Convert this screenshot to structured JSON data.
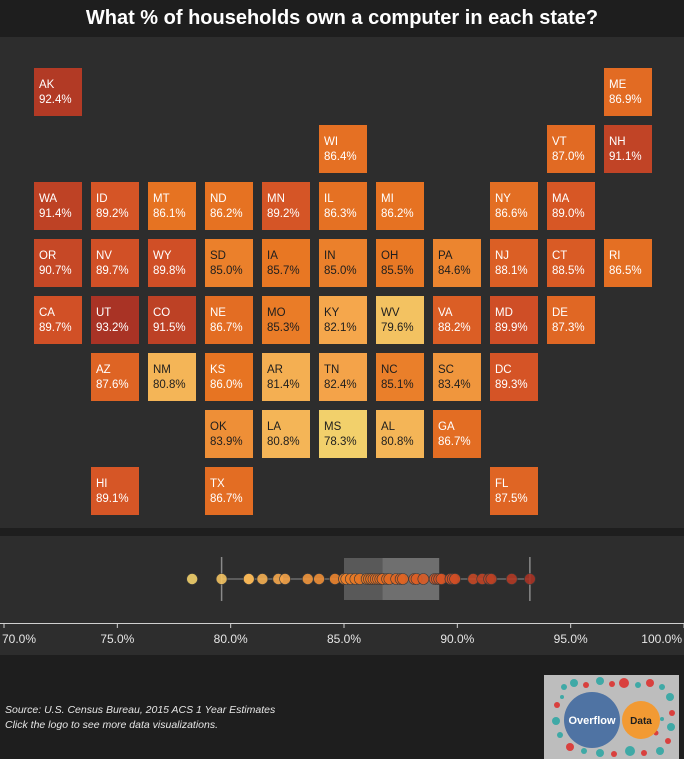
{
  "title": "What % of households own a computer in each state?",
  "source_line1": "Source: U.S. Census Bureau, 2015 ACS 1 Year Estimates",
  "source_line2": "Click the logo to see more data visualizations.",
  "logo": {
    "left": "Overflow",
    "right": "Data"
  },
  "colors": {
    "background": "#1e1e1e",
    "panel": "#2d2d2d",
    "low": "#f2d06b",
    "high": "#a93325"
  },
  "chart_data": {
    "type": "heatmap",
    "title": "What % of households own a computer in each state?",
    "unit": "%",
    "color_scale": {
      "min": 78.3,
      "max": 93.2
    },
    "states": [
      {
        "abbr": "AK",
        "label": "92.4%",
        "value": 92.4,
        "col": 0,
        "row": 0
      },
      {
        "abbr": "ME",
        "label": "86.9%",
        "value": 86.9,
        "col": 10,
        "row": 0
      },
      {
        "abbr": "WI",
        "label": "86.4%",
        "value": 86.4,
        "col": 5,
        "row": 1
      },
      {
        "abbr": "VT",
        "label": "87.0%",
        "value": 87.0,
        "col": 9,
        "row": 1
      },
      {
        "abbr": "NH",
        "label": "91.1%",
        "value": 91.1,
        "col": 10,
        "row": 1
      },
      {
        "abbr": "WA",
        "label": "91.4%",
        "value": 91.4,
        "col": 0,
        "row": 2
      },
      {
        "abbr": "ID",
        "label": "89.2%",
        "value": 89.2,
        "col": 1,
        "row": 2
      },
      {
        "abbr": "MT",
        "label": "86.1%",
        "value": 86.1,
        "col": 2,
        "row": 2
      },
      {
        "abbr": "ND",
        "label": "86.2%",
        "value": 86.2,
        "col": 3,
        "row": 2
      },
      {
        "abbr": "MN",
        "label": "89.2%",
        "value": 89.2,
        "col": 4,
        "row": 2
      },
      {
        "abbr": "IL",
        "label": "86.3%",
        "value": 86.3,
        "col": 5,
        "row": 2
      },
      {
        "abbr": "MI",
        "label": "86.2%",
        "value": 86.2,
        "col": 6,
        "row": 2
      },
      {
        "abbr": "NY",
        "label": "86.6%",
        "value": 86.6,
        "col": 8,
        "row": 2
      },
      {
        "abbr": "MA",
        "label": "89.0%",
        "value": 89.0,
        "col": 9,
        "row": 2
      },
      {
        "abbr": "OR",
        "label": "90.7%",
        "value": 90.7,
        "col": 0,
        "row": 3
      },
      {
        "abbr": "NV",
        "label": "89.7%",
        "value": 89.7,
        "col": 1,
        "row": 3
      },
      {
        "abbr": "WY",
        "label": "89.8%",
        "value": 89.8,
        "col": 2,
        "row": 3
      },
      {
        "abbr": "SD",
        "label": "85.0%",
        "value": 85.0,
        "col": 3,
        "row": 3
      },
      {
        "abbr": "IA",
        "label": "85.7%",
        "value": 85.7,
        "col": 4,
        "row": 3
      },
      {
        "abbr": "IN",
        "label": "85.0%",
        "value": 85.0,
        "col": 5,
        "row": 3
      },
      {
        "abbr": "OH",
        "label": "85.5%",
        "value": 85.5,
        "col": 6,
        "row": 3
      },
      {
        "abbr": "PA",
        "label": "84.6%",
        "value": 84.6,
        "col": 7,
        "row": 3
      },
      {
        "abbr": "NJ",
        "label": "88.1%",
        "value": 88.1,
        "col": 8,
        "row": 3
      },
      {
        "abbr": "CT",
        "label": "88.5%",
        "value": 88.5,
        "col": 9,
        "row": 3
      },
      {
        "abbr": "RI",
        "label": "86.5%",
        "value": 86.5,
        "col": 10,
        "row": 3
      },
      {
        "abbr": "CA",
        "label": "89.7%",
        "value": 89.7,
        "col": 0,
        "row": 4
      },
      {
        "abbr": "UT",
        "label": "93.2%",
        "value": 93.2,
        "col": 1,
        "row": 4
      },
      {
        "abbr": "CO",
        "label": "91.5%",
        "value": 91.5,
        "col": 2,
        "row": 4
      },
      {
        "abbr": "NE",
        "label": "86.7%",
        "value": 86.7,
        "col": 3,
        "row": 4
      },
      {
        "abbr": "MO",
        "label": "85.3%",
        "value": 85.3,
        "col": 4,
        "row": 4
      },
      {
        "abbr": "KY",
        "label": "82.1%",
        "value": 82.1,
        "col": 5,
        "row": 4
      },
      {
        "abbr": "WV",
        "label": "79.6%",
        "value": 79.6,
        "col": 6,
        "row": 4
      },
      {
        "abbr": "VA",
        "label": "88.2%",
        "value": 88.2,
        "col": 7,
        "row": 4
      },
      {
        "abbr": "MD",
        "label": "89.9%",
        "value": 89.9,
        "col": 8,
        "row": 4
      },
      {
        "abbr": "DE",
        "label": "87.3%",
        "value": 87.3,
        "col": 9,
        "row": 4
      },
      {
        "abbr": "AZ",
        "label": "87.6%",
        "value": 87.6,
        "col": 1,
        "row": 5
      },
      {
        "abbr": "NM",
        "label": "80.8%",
        "value": 80.8,
        "col": 2,
        "row": 5
      },
      {
        "abbr": "KS",
        "label": "86.0%",
        "value": 86.0,
        "col": 3,
        "row": 5
      },
      {
        "abbr": "AR",
        "label": "81.4%",
        "value": 81.4,
        "col": 4,
        "row": 5
      },
      {
        "abbr": "TN",
        "label": "82.4%",
        "value": 82.4,
        "col": 5,
        "row": 5
      },
      {
        "abbr": "NC",
        "label": "85.1%",
        "value": 85.1,
        "col": 6,
        "row": 5
      },
      {
        "abbr": "SC",
        "label": "83.4%",
        "value": 83.4,
        "col": 7,
        "row": 5
      },
      {
        "abbr": "DC",
        "label": "89.3%",
        "value": 89.3,
        "col": 8,
        "row": 5
      },
      {
        "abbr": "OK",
        "label": "83.9%",
        "value": 83.9,
        "col": 3,
        "row": 6
      },
      {
        "abbr": "LA",
        "label": "80.8%",
        "value": 80.8,
        "col": 4,
        "row": 6
      },
      {
        "abbr": "MS",
        "label": "78.3%",
        "value": 78.3,
        "col": 5,
        "row": 6
      },
      {
        "abbr": "AL",
        "label": "80.8%",
        "value": 80.8,
        "col": 6,
        "row": 6
      },
      {
        "abbr": "GA",
        "label": "86.7%",
        "value": 86.7,
        "col": 7,
        "row": 6
      },
      {
        "abbr": "HI",
        "label": "89.1%",
        "value": 89.1,
        "col": 1,
        "row": 7
      },
      {
        "abbr": "TX",
        "label": "86.7%",
        "value": 86.7,
        "col": 3,
        "row": 7
      },
      {
        "abbr": "FL",
        "label": "87.5%",
        "value": 87.5,
        "col": 8,
        "row": 7
      }
    ],
    "strip": {
      "type": "scatter",
      "xlim": [
        70,
        100
      ],
      "ticks": [
        "70.0%",
        "75.0%",
        "80.0%",
        "85.0%",
        "90.0%",
        "95.0%",
        "100.0%"
      ],
      "tick_values": [
        70,
        75,
        80,
        85,
        90,
        95,
        100
      ],
      "box": {
        "whisker_low": 79.6,
        "q1": 85.0,
        "median": 86.7,
        "q3": 89.2,
        "whisker_high": 93.2
      }
    }
  }
}
